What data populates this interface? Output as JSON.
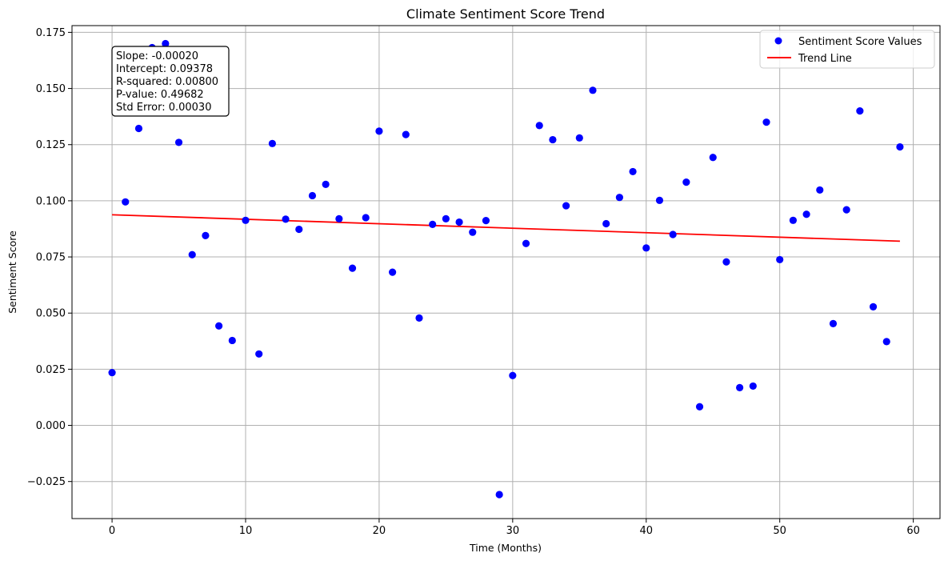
{
  "chart_data": {
    "type": "scatter",
    "title": "Climate Sentiment Score Trend",
    "xlabel": "Time (Months)",
    "ylabel": "Sentiment Score",
    "xlim": [
      -3,
      62
    ],
    "ylim": [
      -0.0415,
      0.178
    ],
    "xticks": [
      0,
      10,
      20,
      30,
      40,
      50,
      60
    ],
    "yticks": [
      -0.025,
      0.0,
      0.025,
      0.05,
      0.075,
      0.1,
      0.125,
      0.15,
      0.175
    ],
    "ytick_labels": [
      "−0.025",
      "0.000",
      "0.025",
      "0.050",
      "0.075",
      "0.100",
      "0.125",
      "0.150",
      "0.175"
    ],
    "grid": true,
    "legend_position": "top-right",
    "series": [
      {
        "name": "Sentiment Score Values",
        "kind": "scatter",
        "color": "#0000ff",
        "x": [
          0,
          1,
          2,
          3,
          4,
          5,
          6,
          7,
          8,
          9,
          10,
          11,
          12,
          13,
          14,
          15,
          16,
          17,
          18,
          19,
          20,
          21,
          22,
          23,
          24,
          25,
          26,
          27,
          28,
          29,
          30,
          31,
          32,
          33,
          34,
          35,
          36,
          37,
          38,
          39,
          40,
          41,
          42,
          43,
          44,
          45,
          46,
          47,
          48,
          49,
          50,
          51,
          52,
          53,
          54,
          55,
          56,
          57,
          58,
          59
        ],
        "y": [
          0.0235,
          0.0995,
          0.1322,
          0.1682,
          0.17,
          0.126,
          0.076,
          0.0845,
          0.0443,
          0.0378,
          0.0913,
          0.0318,
          0.1255,
          0.0918,
          0.0873,
          0.1023,
          0.1073,
          0.092,
          0.07,
          0.0925,
          0.131,
          0.0682,
          0.1295,
          0.0478,
          0.0895,
          0.092,
          0.0905,
          0.086,
          0.0912,
          -0.0308,
          0.0222,
          0.081,
          0.1335,
          0.1272,
          0.0978,
          0.128,
          0.1492,
          0.0898,
          0.1015,
          0.113,
          0.079,
          0.1002,
          0.085,
          0.1083,
          0.0083,
          0.1193,
          0.0728,
          0.0168,
          0.0175,
          0.135,
          0.0738,
          0.0913,
          0.094,
          0.1048,
          0.0453,
          0.096,
          0.14,
          0.0528,
          0.0373,
          0.124
        ]
      },
      {
        "name": "Trend Line",
        "kind": "line",
        "color": "#ff0000",
        "x": [
          0,
          59
        ],
        "y": [
          0.09378,
          0.082
        ]
      }
    ],
    "annotation": {
      "lines": [
        "Slope: -0.00020",
        "Intercept: 0.09378",
        "R-squared: 0.00800",
        "P-value: 0.49682",
        "Std Error: 0.00030"
      ],
      "position": "top-left"
    }
  }
}
